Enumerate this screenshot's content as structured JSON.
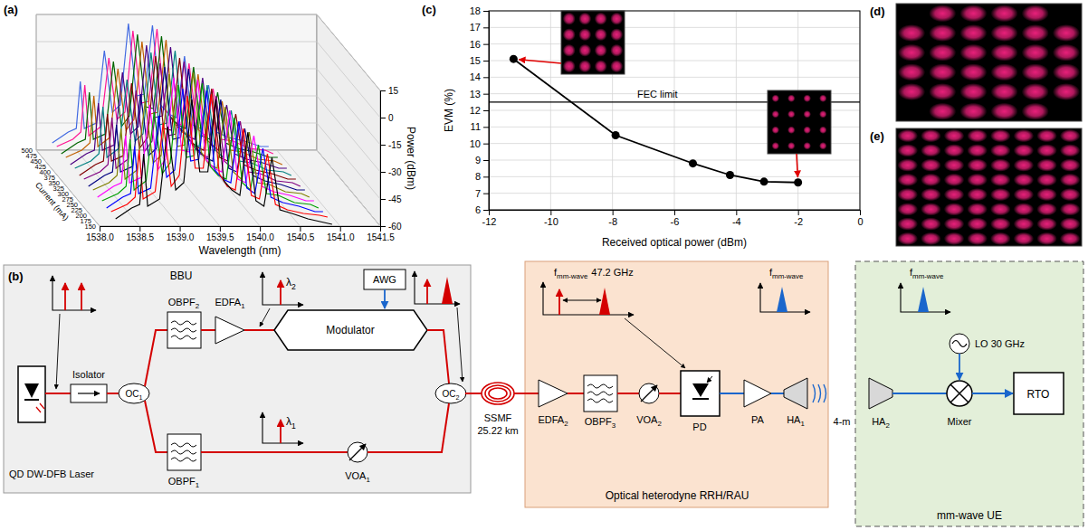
{
  "chart_data": [
    {
      "panel": "(a)",
      "type": "waterfall",
      "x_label": "Wavelength (nm)",
      "y_label": "Power (dBm)",
      "z_label": "Current (mA)",
      "x": [
        1538.2,
        1538.4,
        1538.5,
        1538.55,
        1538.6,
        1538.75,
        1538.85,
        1538.95,
        1539.05,
        1539.15,
        1539.25,
        1539.35,
        1539.45,
        1539.55,
        1539.65,
        1539.75,
        1539.85,
        1539.95,
        1540.05,
        1540.15,
        1540.25,
        1540.4,
        1540.6,
        1540.8,
        1540.9
      ],
      "xlim": [
        1538.0,
        1541.5
      ],
      "xticks": [
        {
          "value": 1538,
          "label": "1538.0"
        },
        1538.5,
        {
          "value": 1539,
          "label": "1539.0"
        },
        1539.5,
        {
          "value": 1540,
          "label": "1540.0"
        },
        1540.5,
        {
          "value": 1541,
          "label": "1541.0"
        },
        1541.5
      ],
      "ylim": [
        -60,
        15
      ],
      "yticks": [
        -60,
        -45,
        -30,
        -15,
        0,
        15
      ],
      "grid": true,
      "series": [
        {
          "name": "150",
          "color": "#000000",
          "values": [
            -56,
            -50,
            -48,
            -20,
            -49,
            -45,
            -5,
            -40,
            -36,
            10,
            -30,
            -30,
            10,
            -35,
            -40,
            -43,
            -8,
            -46,
            -49,
            -22,
            -51,
            -53,
            -56,
            -58,
            -59
          ]
        },
        {
          "name": "175",
          "color": "#ff0000",
          "values": [
            -55,
            -51,
            -47,
            -21,
            -48,
            -44,
            -6,
            -41,
            -35,
            9,
            -31,
            -31,
            10,
            -34,
            -41,
            -43,
            -9,
            -46,
            -48,
            -23,
            -51,
            -54,
            -56,
            -57,
            -58
          ]
        },
        {
          "name": "200",
          "color": "#0000ff",
          "values": [
            -56,
            -50,
            -48,
            -22,
            -48,
            -45,
            -5,
            -39,
            -35,
            10,
            -30,
            -29,
            9,
            -35,
            -40,
            -42,
            -8,
            -45,
            -48,
            -23,
            -50,
            -53,
            -55,
            -58,
            -58
          ]
        },
        {
          "name": "225",
          "color": "#00a000",
          "values": [
            -55,
            -51,
            -47,
            -21,
            -49,
            -44,
            -6,
            -40,
            -34,
            9,
            -31,
            -30,
            10,
            -36,
            -41,
            -43,
            -9,
            -45,
            -49,
            -24,
            -51,
            -52,
            -56,
            -57,
            -59
          ]
        },
        {
          "name": "250",
          "color": "#ff00ff",
          "values": [
            -56,
            -50,
            -48,
            -22,
            -48,
            -45,
            -5,
            -41,
            -35,
            10,
            -30,
            -31,
            9,
            -35,
            -40,
            -42,
            -8,
            -46,
            -48,
            -22,
            -50,
            -53,
            -55,
            -58,
            -58
          ]
        },
        {
          "name": "275",
          "color": "#808000",
          "values": [
            -55,
            -51,
            -47,
            -21,
            -49,
            -44,
            -6,
            -40,
            -36,
            9,
            -31,
            -30,
            10,
            -34,
            -41,
            -43,
            -9,
            -45,
            -49,
            -23,
            -51,
            -52,
            -56,
            -57,
            -59
          ]
        },
        {
          "name": "300",
          "color": "#000080",
          "values": [
            -56,
            -50,
            -48,
            -22,
            -48,
            -45,
            -5,
            -39,
            -35,
            10,
            -30,
            -29,
            9,
            -35,
            -40,
            -42,
            -8,
            -46,
            -48,
            -24,
            -50,
            -53,
            -55,
            -58,
            -58
          ]
        },
        {
          "name": "325",
          "color": "#800080",
          "values": [
            -55,
            -51,
            -47,
            -21,
            -49,
            -44,
            -6,
            -40,
            -34,
            9,
            -31,
            -30,
            10,
            -36,
            -41,
            -43,
            -9,
            -45,
            -49,
            -23,
            -51,
            -52,
            -56,
            -57,
            -59
          ]
        },
        {
          "name": "350",
          "color": "#800000",
          "values": [
            -56,
            -50,
            -48,
            -22,
            -48,
            -45,
            -5,
            -41,
            -35,
            10,
            -30,
            -31,
            9,
            -35,
            -40,
            -42,
            -8,
            -46,
            -48,
            -22,
            -50,
            -53,
            -55,
            -58,
            -58
          ]
        },
        {
          "name": "375",
          "color": "#008080",
          "values": [
            -55,
            -51,
            -47,
            -21,
            -49,
            -44,
            -6,
            -40,
            -36,
            9,
            -31,
            -30,
            10,
            -34,
            -41,
            -43,
            -9,
            -45,
            -49,
            -23,
            -51,
            -52,
            -56,
            -57,
            -59
          ]
        },
        {
          "name": "400",
          "color": "#4b0082",
          "values": [
            -56,
            -50,
            -48,
            -22,
            -48,
            -45,
            -5,
            -39,
            -35,
            10,
            -30,
            -29,
            9,
            -35,
            -40,
            -42,
            -8,
            -45,
            -48,
            -23,
            -50,
            -53,
            -55,
            -58,
            -58
          ]
        },
        {
          "name": "425",
          "color": "#c06000",
          "values": [
            -55,
            -51,
            -47,
            -21,
            -49,
            -44,
            -6,
            -40,
            -34,
            9,
            -31,
            -30,
            10,
            -36,
            -41,
            -43,
            -9,
            -45,
            -49,
            -24,
            -51,
            -52,
            -56,
            -57,
            -59
          ]
        },
        {
          "name": "450",
          "color": "#006400",
          "values": [
            -56,
            -50,
            -48,
            -22,
            -48,
            -45,
            -5,
            -41,
            -35,
            10,
            -30,
            -31,
            9,
            -35,
            -40,
            -42,
            -8,
            -46,
            -48,
            -22,
            -50,
            -53,
            -55,
            -58,
            -58
          ]
        },
        {
          "name": "475",
          "color": "#ff1493",
          "values": [
            -55,
            -51,
            -47,
            -21,
            -49,
            -44,
            -6,
            -40,
            -36,
            9,
            -31,
            -30,
            10,
            -34,
            -41,
            -43,
            -9,
            -45,
            -49,
            -23,
            -51,
            -52,
            -56,
            -57,
            -59
          ]
        },
        {
          "name": "500",
          "color": "#4169e1",
          "values": [
            -56,
            -50,
            -48,
            -22,
            -48,
            -45,
            -5,
            -39,
            -35,
            10,
            -30,
            -29,
            9,
            -35,
            -40,
            -42,
            -8,
            -46,
            -48,
            -24,
            -50,
            -53,
            -55,
            -58,
            -58
          ]
        }
      ]
    },
    {
      "panel": "(c)",
      "type": "line",
      "marker": "circle",
      "color": "#000000",
      "x_label": "Received optical power (dBm)",
      "y_label": "EVM (%)",
      "x": [
        -11.2,
        -7.9,
        -5.4,
        -4.2,
        -3.1,
        -2.0
      ],
      "values": [
        15.1,
        10.5,
        8.8,
        8.1,
        7.7,
        7.65
      ],
      "xlim": [
        -12,
        0
      ],
      "xticks": [
        -12,
        -10,
        -8,
        -6,
        -4,
        -2,
        0
      ],
      "ylim": [
        6,
        18
      ],
      "yticks": [
        6,
        7,
        8,
        9,
        10,
        11,
        12,
        13,
        14,
        15,
        16,
        17,
        18
      ],
      "grid": true,
      "annotations": [
        {
          "text": "FEC limit",
          "y": 12.5
        }
      ],
      "insets": [
        {
          "type": "scatter",
          "color": "#e8207a",
          "tick_labels": false,
          "xlim": [
            -4,
            4
          ],
          "ylim": [
            -4,
            4
          ],
          "cluster_spread": 0.5,
          "i": [
            -3,
            -1,
            1,
            3,
            -3,
            -1,
            1,
            3,
            -3,
            -1,
            1,
            3,
            -3,
            -1,
            1,
            3
          ],
          "q": [
            3,
            3,
            3,
            3,
            1,
            1,
            1,
            1,
            -1,
            -1,
            -1,
            -1,
            -3,
            -3,
            -3,
            -3
          ]
        },
        {
          "type": "scatter",
          "color": "#e8207a",
          "tick_labels": false,
          "xlim": [
            -4,
            4
          ],
          "ylim": [
            -4,
            4
          ],
          "cluster_spread": 0.3,
          "i": [
            -3,
            -1,
            1,
            3,
            -3,
            -1,
            1,
            3,
            -3,
            -1,
            1,
            3,
            -3,
            -1,
            1,
            3
          ],
          "q": [
            3,
            3,
            3,
            3,
            1,
            1,
            1,
            1,
            -1,
            -1,
            -1,
            -1,
            -3,
            -3,
            -3,
            -3
          ]
        }
      ]
    },
    {
      "panel": "(d)",
      "type": "scatter",
      "color": "#e8207a",
      "tick_labels": false,
      "xlim": [
        -6,
        6
      ],
      "ylim": [
        -6,
        6
      ],
      "cluster_spread": 0.55,
      "i": [
        -3,
        -1,
        1,
        3,
        -5,
        -3,
        -1,
        1,
        3,
        5,
        -5,
        -3,
        -1,
        1,
        3,
        5,
        -5,
        -3,
        -1,
        1,
        3,
        5,
        -5,
        -3,
        -1,
        1,
        3,
        5,
        -3,
        -1,
        1,
        3
      ],
      "q": [
        5,
        5,
        5,
        5,
        3,
        3,
        3,
        3,
        3,
        3,
        1,
        1,
        1,
        1,
        1,
        1,
        -1,
        -1,
        -1,
        -1,
        -1,
        -1,
        -3,
        -3,
        -3,
        -3,
        -3,
        -3,
        -5,
        -5,
        -5,
        -5
      ]
    },
    {
      "panel": "(e)",
      "type": "scatter",
      "color": "#e8207a",
      "tick_labels": false,
      "xlim": [
        -8,
        8
      ],
      "ylim": [
        -8,
        8
      ],
      "cluster_spread": 0.55,
      "i": [
        -7,
        -5,
        -3,
        -1,
        1,
        3,
        5,
        7,
        -7,
        -5,
        -3,
        -1,
        1,
        3,
        5,
        7,
        -7,
        -5,
        -3,
        -1,
        1,
        3,
        5,
        7,
        -7,
        -5,
        -3,
        -1,
        1,
        3,
        5,
        7,
        -7,
        -5,
        -3,
        -1,
        1,
        3,
        5,
        7,
        -7,
        -5,
        -3,
        -1,
        1,
        3,
        5,
        7,
        -7,
        -5,
        -3,
        -1,
        1,
        3,
        5,
        7,
        -7,
        -5,
        -3,
        -1,
        1,
        3,
        5,
        7
      ],
      "q": [
        7,
        7,
        7,
        7,
        7,
        7,
        7,
        7,
        5,
        5,
        5,
        5,
        5,
        5,
        5,
        5,
        3,
        3,
        3,
        3,
        3,
        3,
        3,
        3,
        1,
        1,
        1,
        1,
        1,
        1,
        1,
        1,
        -1,
        -1,
        -1,
        -1,
        -1,
        -1,
        -1,
        -1,
        -3,
        -3,
        -3,
        -3,
        -3,
        -3,
        -3,
        -3,
        -5,
        -5,
        -5,
        -5,
        -5,
        -5,
        -5,
        -5,
        -7,
        -7,
        -7,
        -7,
        -7,
        -7,
        -7,
        -7
      ]
    }
  ],
  "diagram": {
    "panel": "(b)",
    "sections": [
      "BBU",
      "Optical heterodyne RRH/RAU",
      "mm-wave UE"
    ],
    "components": [
      {
        "label": "QD DW-DFB Laser"
      },
      {
        "label": "Isolator"
      },
      {
        "label": "OC",
        "sub": "1"
      },
      {
        "label": "OBPF",
        "sub": "2"
      },
      {
        "label": "EDFA",
        "sub": "1"
      },
      {
        "label": "Modulator"
      },
      {
        "label": "AWG"
      },
      {
        "label": "OBPF",
        "sub": "1"
      },
      {
        "label": "VOA",
        "sub": "1"
      },
      {
        "label": "OC",
        "sub": "2"
      },
      {
        "label": "SSMF",
        "detail": "25.22 km"
      },
      {
        "label": "EDFA",
        "sub": "2"
      },
      {
        "label": "OBPF",
        "sub": "3"
      },
      {
        "label": "VOA",
        "sub": "2"
      },
      {
        "label": "PD"
      },
      {
        "label": "PA"
      },
      {
        "label": "HA",
        "sub": "1"
      },
      {
        "label": "HA",
        "sub": "2"
      },
      {
        "label": "Mixer"
      },
      {
        "label": "LO 30 GHz"
      },
      {
        "label": "RTO"
      }
    ],
    "annotations": [
      {
        "label": "λ",
        "sub": "2"
      },
      {
        "label": "λ",
        "sub": "1"
      },
      {
        "label": "f",
        "sub": "mm-wave",
        "detail": "47.2 GHz"
      },
      {
        "label": "f",
        "sub": "mm-wave"
      },
      {
        "label": "f",
        "sub": "mm-wave"
      },
      {
        "label": "4-m"
      }
    ]
  }
}
